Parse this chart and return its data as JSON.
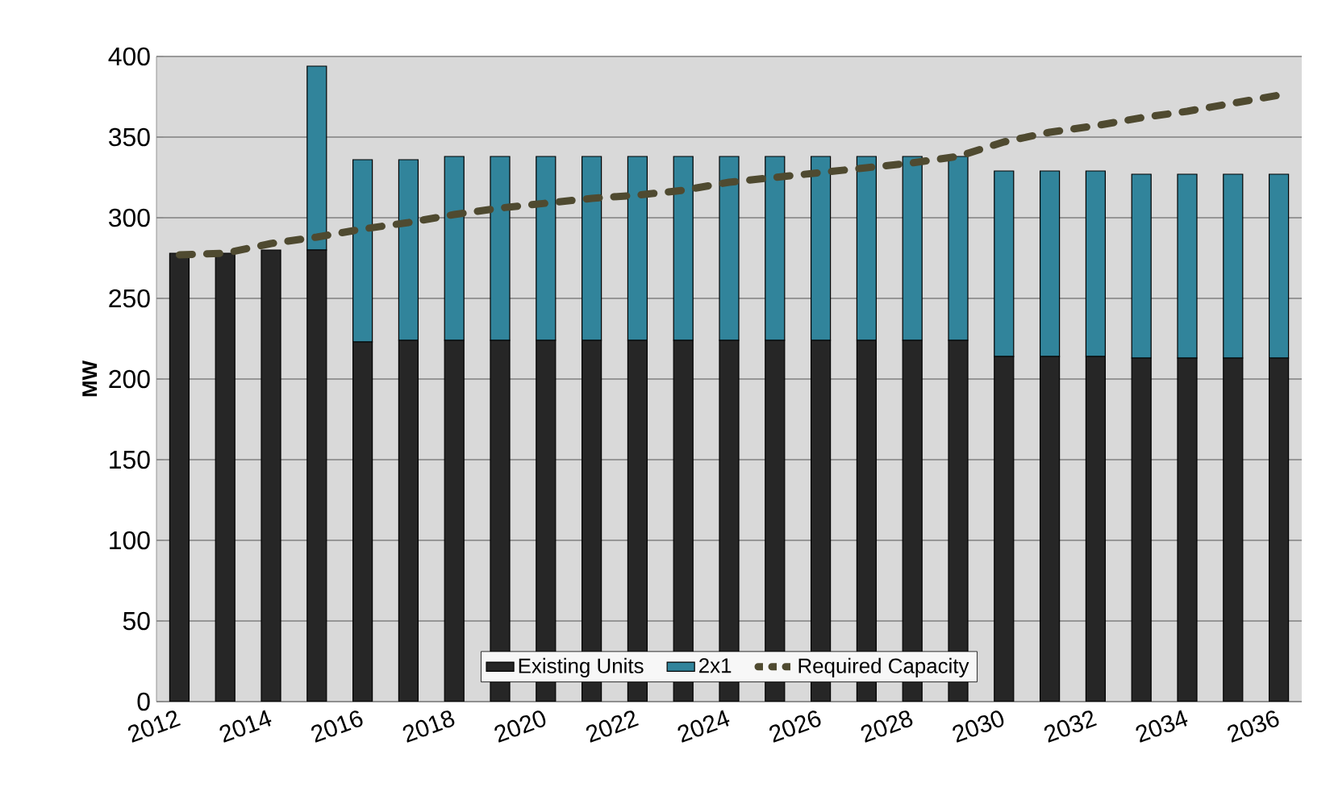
{
  "chart_data": {
    "type": "bar",
    "stacked": true,
    "ylabel": "MW",
    "categories": [
      "2012",
      null,
      "2014",
      null,
      "2016",
      null,
      "2018",
      null,
      "2020",
      null,
      "2022",
      null,
      "2024",
      null,
      "2026",
      null,
      "2028",
      null,
      "2030",
      null,
      "2032",
      null,
      "2034",
      null,
      "2036"
    ],
    "series": [
      {
        "name": "Existing Units",
        "color": "#262626",
        "values": [
          278,
          278,
          280,
          280,
          223,
          224,
          224,
          224,
          224,
          224,
          224,
          224,
          224,
          224,
          224,
          224,
          224,
          224,
          214,
          214,
          214,
          213,
          213,
          213,
          213
        ]
      },
      {
        "name": "2x1",
        "color": "#31849b",
        "values": [
          null,
          null,
          null,
          114,
          113,
          112,
          114,
          114,
          114,
          114,
          114,
          114,
          114,
          114,
          114,
          114,
          114,
          114,
          115,
          115,
          115,
          114,
          114,
          114,
          114
        ]
      },
      {
        "name": "Required Capacity",
        "type": "line",
        "color": "#4f4a30",
        "line_style": "dashed",
        "values": [
          277,
          278,
          284,
          288,
          293,
          297,
          302,
          306,
          309,
          312,
          314,
          317,
          322,
          325,
          328,
          331,
          334,
          338,
          347,
          353,
          357,
          362,
          366,
          371,
          376
        ]
      }
    ],
    "ylim": [
      0,
      400
    ],
    "yticks": [
      0,
      50,
      100,
      150,
      200,
      250,
      300,
      350,
      400
    ],
    "grid": "y",
    "legend": "bottom"
  }
}
